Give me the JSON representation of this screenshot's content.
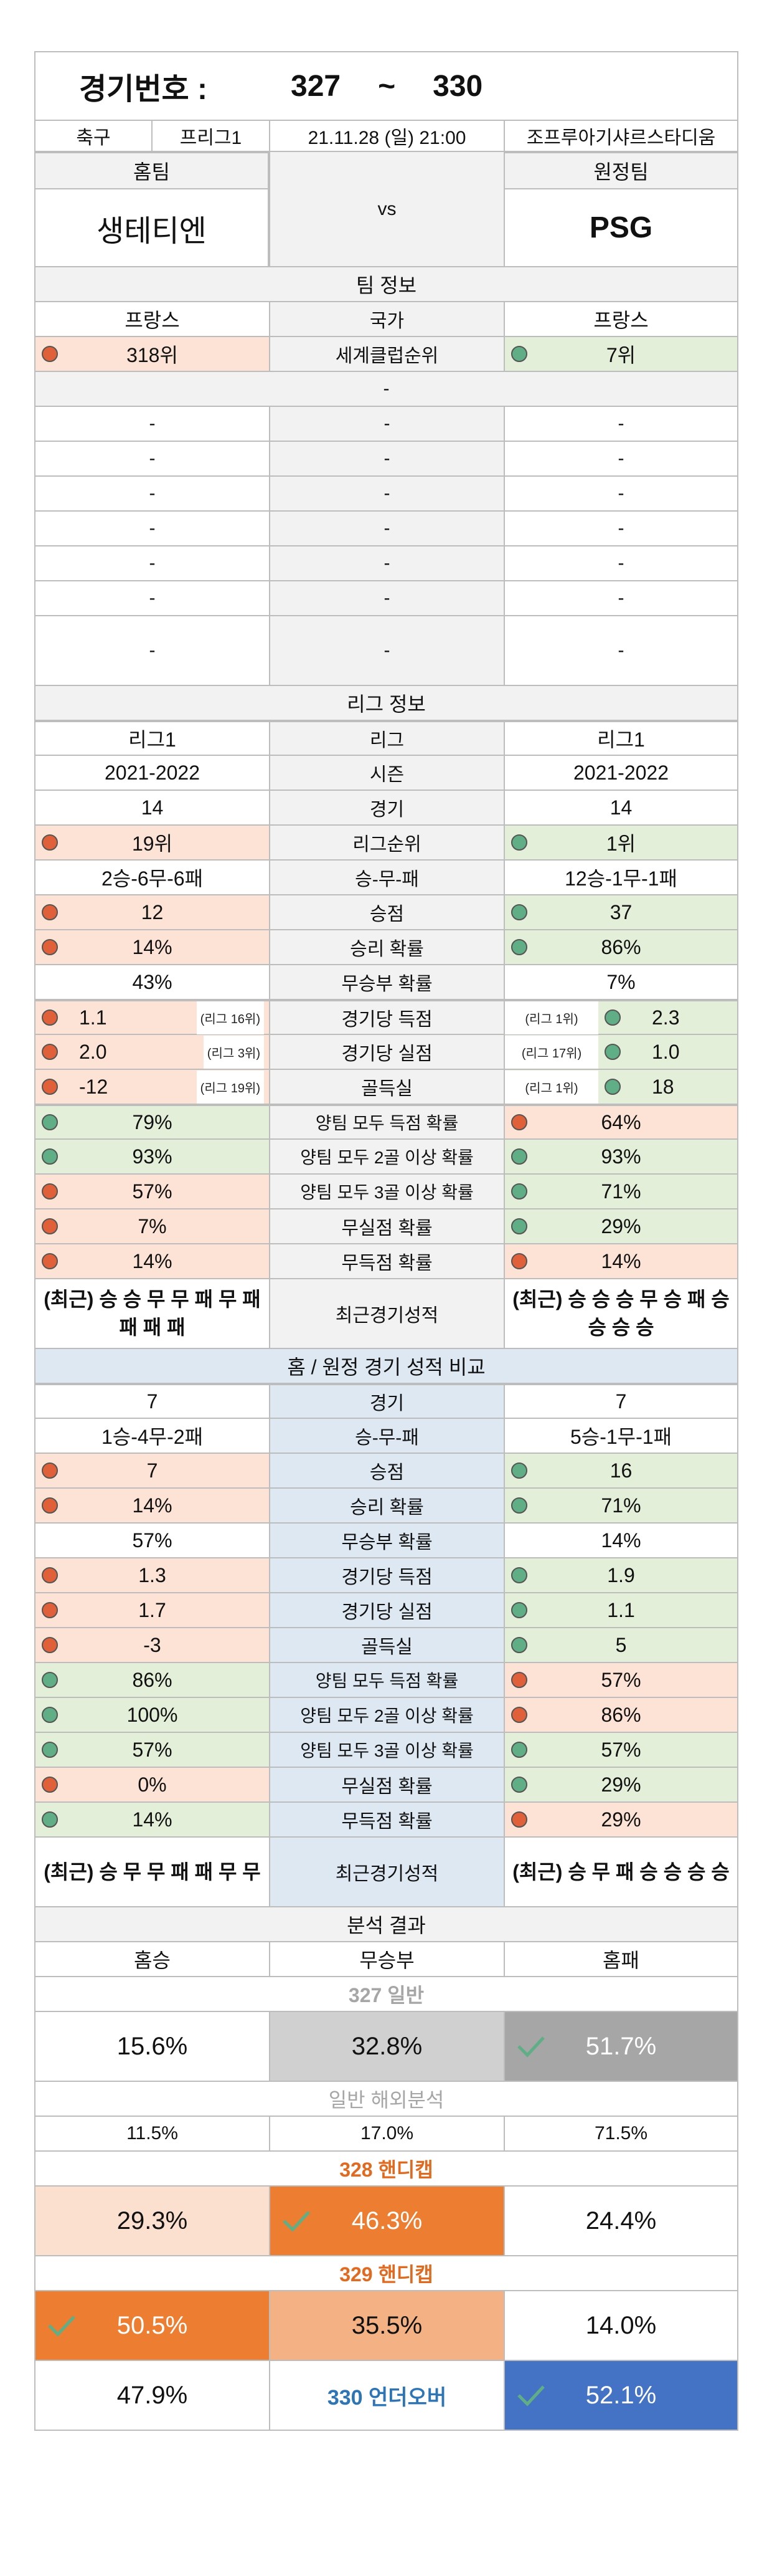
{
  "header": {
    "label": "경기번호 :",
    "from": "327",
    "tilde": "~",
    "to": "330"
  },
  "match": {
    "sport": "축구",
    "league": "프리그1",
    "datetime": "21.11.28 (일) 21:00",
    "stadium": "조프루아기샤르스타디움",
    "home_label": "홈팀",
    "away_label": "원정팀",
    "vs": "vs",
    "home_team": "생테티엔",
    "away_team": "PSG"
  },
  "team_info": {
    "title": "팀 정보",
    "country_label": "국가",
    "home_country": "프랑스",
    "away_country": "프랑스",
    "rank_label": "세계클럽순위",
    "home_rank": "318위",
    "away_rank": "7위",
    "dash": "-"
  },
  "league_info": {
    "title": "리그 정보",
    "rows": [
      {
        "home": "리그1",
        "label": "리그",
        "away": "리그1"
      },
      {
        "home": "2021-2022",
        "label": "시즌",
        "away": "2021-2022"
      },
      {
        "home": "14",
        "label": "경기",
        "away": "14"
      },
      {
        "home": "19위",
        "label": "리그순위",
        "away": "1위",
        "hc": "red",
        "ac": "grn"
      },
      {
        "home": "2승-6무-6패",
        "label": "승-무-패",
        "away": "12승-1무-1패"
      },
      {
        "home": "12",
        "label": "승점",
        "away": "37",
        "hc": "red",
        "ac": "grn"
      },
      {
        "home": "14%",
        "label": "승리 확률",
        "away": "86%",
        "hc": "red",
        "ac": "grn"
      },
      {
        "home": "43%",
        "label": "무승부 확률",
        "away": "7%"
      }
    ],
    "ranked_rows": [
      {
        "home": "1.1",
        "home_rank": "(리그 16위)",
        "label": "경기당 득점",
        "away": "2.3",
        "away_rank": "(리그 1위)"
      },
      {
        "home": "2.0",
        "home_rank": "(리그 3위)",
        "label": "경기당 실점",
        "away": "1.0",
        "away_rank": "(리그 17위)"
      },
      {
        "home": "-12",
        "home_rank": "(리그 19위)",
        "label": "골득실",
        "away": "18",
        "away_rank": "(리그 1위)"
      }
    ],
    "prob_rows": [
      {
        "home": "79%",
        "label": "양팀 모두 득점 확률",
        "away": "64%",
        "hc": "grn",
        "ac": "red"
      },
      {
        "home": "93%",
        "label": "양팀 모두 2골 이상 확률",
        "away": "93%",
        "hc": "grn",
        "ac": "grn"
      },
      {
        "home": "57%",
        "label": "양팀 모두 3골 이상 확률",
        "away": "71%",
        "hc": "red",
        "ac": "grn"
      },
      {
        "home": "7%",
        "label": "무실점 확률",
        "away": "29%",
        "hc": "red",
        "ac": "grn"
      },
      {
        "home": "14%",
        "label": "무득점 확률",
        "away": "14%",
        "hc": "red",
        "ac": "red"
      }
    ],
    "recent": {
      "home": "(최근) 승 승 무 무 패 무 패 패 패 패",
      "label": "최근경기성적",
      "away": "(최근) 승 승 승 무 승 패 승 승 승 승"
    }
  },
  "homeaway": {
    "title": "홈 / 원정 경기 성적 비교",
    "rows": [
      {
        "home": "7",
        "label": "경기",
        "away": "7"
      },
      {
        "home": "1승-4무-2패",
        "label": "승-무-패",
        "away": "5승-1무-1패"
      },
      {
        "home": "7",
        "label": "승점",
        "away": "16",
        "hc": "red",
        "ac": "grn"
      },
      {
        "home": "14%",
        "label": "승리 확률",
        "away": "71%",
        "hc": "red",
        "ac": "grn"
      },
      {
        "home": "57%",
        "label": "무승부 확률",
        "away": "14%"
      },
      {
        "home": "1.3",
        "label": "경기당 득점",
        "away": "1.9",
        "hc": "red",
        "ac": "grn"
      },
      {
        "home": "1.7",
        "label": "경기당 실점",
        "away": "1.1",
        "hc": "red",
        "ac": "grn"
      },
      {
        "home": "-3",
        "label": "골득실",
        "away": "5",
        "hc": "red",
        "ac": "grn"
      },
      {
        "home": "86%",
        "label": "양팀 모두 득점 확률",
        "away": "57%",
        "hc": "grn",
        "ac": "red"
      },
      {
        "home": "100%",
        "label": "양팀 모두 2골 이상 확률",
        "away": "86%",
        "hc": "grn",
        "ac": "red"
      },
      {
        "home": "57%",
        "label": "양팀 모두 3골 이상 확률",
        "away": "57%",
        "hc": "grn",
        "ac": "grn"
      },
      {
        "home": "0%",
        "label": "무실점 확률",
        "away": "29%",
        "hc": "red",
        "ac": "grn"
      },
      {
        "home": "14%",
        "label": "무득점 확률",
        "away": "29%",
        "hc": "grn",
        "ac": "red"
      }
    ],
    "recent": {
      "home": "(최근) 승 무 무 패 패 무 무",
      "label": "최근경기성적",
      "away": "(최근) 승 무 패 승 승 승 승"
    }
  },
  "analysis": {
    "title": "분석 결과",
    "col_home": "홈승",
    "col_draw": "무승부",
    "col_away": "홈패",
    "general_title": "327 일반",
    "general": [
      "15.6%",
      "32.8%",
      "51.7%"
    ],
    "overseas_title": "일반 해외분석",
    "overseas": [
      "11.5%",
      "17.0%",
      "71.5%"
    ],
    "h328_title": "328 핸디캡",
    "h328": [
      "29.3%",
      "46.3%",
      "24.4%"
    ],
    "h329_title": "329 핸디캡",
    "h329": [
      "50.5%",
      "35.5%",
      "14.0%"
    ],
    "uo330_label": "330 언더오버",
    "uo330": [
      "47.9%",
      "52.1%"
    ]
  },
  "colors": {
    "border": "#bdbdbd",
    "peach": "#fde3d5",
    "green": "#e3efd9",
    "blue": "#dde8f3",
    "dot_red": "#e0603a",
    "dot_green": "#5fae86",
    "orange": "#ed7d31",
    "light_orange": "#f4b183",
    "pale_orange": "#fbe0d0",
    "dark_gray": "#a6a6a6",
    "mid_gray": "#d0d0d0",
    "blue_dark": "#4472c4",
    "orange_text": "#e06a1f",
    "blue_text": "#2e75b6",
    "gray_text": "#a6a6a6"
  }
}
